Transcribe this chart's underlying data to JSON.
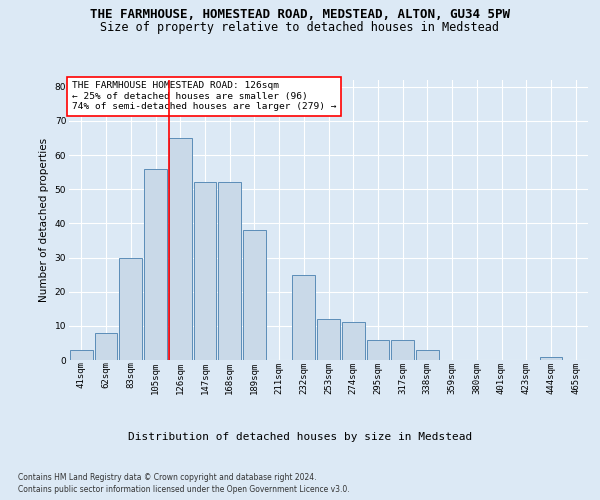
{
  "title1": "THE FARMHOUSE, HOMESTEAD ROAD, MEDSTEAD, ALTON, GU34 5PW",
  "title2": "Size of property relative to detached houses in Medstead",
  "xlabel": "Distribution of detached houses by size in Medstead",
  "ylabel": "Number of detached properties",
  "bar_labels": [
    "41sqm",
    "62sqm",
    "83sqm",
    "105sqm",
    "126sqm",
    "147sqm",
    "168sqm",
    "189sqm",
    "211sqm",
    "232sqm",
    "253sqm",
    "274sqm",
    "295sqm",
    "317sqm",
    "338sqm",
    "359sqm",
    "380sqm",
    "401sqm",
    "423sqm",
    "444sqm",
    "465sqm"
  ],
  "bar_values": [
    3,
    8,
    30,
    56,
    65,
    52,
    52,
    38,
    0,
    25,
    12,
    11,
    6,
    6,
    3,
    0,
    0,
    0,
    0,
    1,
    0
  ],
  "bar_color": "#c9d9e8",
  "bar_edge_color": "#5b8db8",
  "red_line_index": 4,
  "annotation_text": "THE FARMHOUSE HOMESTEAD ROAD: 126sqm\n← 25% of detached houses are smaller (96)\n74% of semi-detached houses are larger (279) →",
  "ylim": [
    0,
    82
  ],
  "yticks": [
    0,
    10,
    20,
    30,
    40,
    50,
    60,
    70,
    80
  ],
  "footnote1": "Contains HM Land Registry data © Crown copyright and database right 2024.",
  "footnote2": "Contains public sector information licensed under the Open Government Licence v3.0.",
  "background_color": "#dce9f5",
  "grid_color": "white",
  "title_fontsize": 9,
  "subtitle_fontsize": 8.5,
  "tick_fontsize": 6.5,
  "ylabel_fontsize": 7.5,
  "xlabel_fontsize": 8,
  "annot_fontsize": 6.8,
  "footnote_fontsize": 5.5
}
